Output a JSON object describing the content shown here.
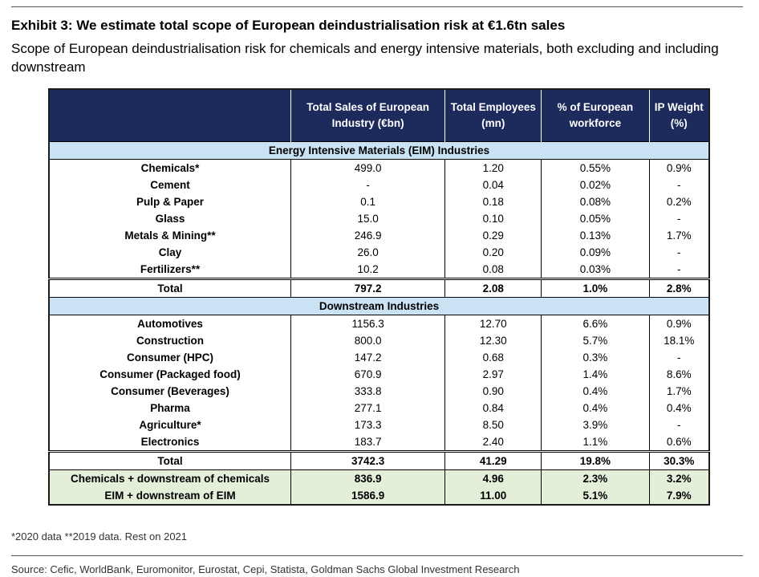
{
  "header": {
    "title": "Exhibit 3: We estimate total scope of European deindustrialisation risk at €1.6tn sales",
    "subtitle": "Scope of European deindustrialisation risk for chemicals and energy intensive materials, both excluding and including downstream"
  },
  "table": {
    "columns": [
      "Total Sales of European Industry (€bn)",
      "Total Employees (mn)",
      "% of European workforce",
      "IP Weight (%)"
    ],
    "sections": [
      {
        "title": "Energy Intensive Materials (EIM) Industries",
        "rows": [
          [
            "Chemicals*",
            "499.0",
            "1.20",
            "0.55%",
            "0.9%"
          ],
          [
            "Cement",
            "-",
            "0.04",
            "0.02%",
            "-"
          ],
          [
            "Pulp & Paper",
            "0.1",
            "0.18",
            "0.08%",
            "0.2%"
          ],
          [
            "Glass",
            "15.0",
            "0.10",
            "0.05%",
            "-"
          ],
          [
            "Metals & Mining**",
            "246.9",
            "0.29",
            "0.13%",
            "1.7%"
          ],
          [
            "Clay",
            "26.0",
            "0.20",
            "0.09%",
            "-"
          ],
          [
            "Fertilizers**",
            "10.2",
            "0.08",
            "0.03%",
            "-"
          ]
        ],
        "total": [
          "Total",
          "797.2",
          "2.08",
          "1.0%",
          "2.8%"
        ]
      },
      {
        "title": "Downstream Industries",
        "rows": [
          [
            "Automotives",
            "1156.3",
            "12.70",
            "6.6%",
            "0.9%"
          ],
          [
            "Construction",
            "800.0",
            "12.30",
            "5.7%",
            "18.1%"
          ],
          [
            "Consumer (HPC)",
            "147.2",
            "0.68",
            "0.3%",
            "-"
          ],
          [
            "Consumer (Packaged food)",
            "670.9",
            "2.97",
            "1.4%",
            "8.6%"
          ],
          [
            "Consumer (Beverages)",
            "333.8",
            "0.90",
            "0.4%",
            "1.7%"
          ],
          [
            "Pharma",
            "277.1",
            "0.84",
            "0.4%",
            "0.4%"
          ],
          [
            "Agriculture*",
            "173.3",
            "8.50",
            "3.9%",
            "-"
          ],
          [
            "Electronics",
            "183.7",
            "2.40",
            "1.1%",
            "0.6%"
          ]
        ],
        "total": [
          "Total",
          "3742.3",
          "41.29",
          "19.8%",
          "30.3%"
        ]
      }
    ],
    "summary": [
      [
        "Chemicals + downstream of chemicals",
        "836.9",
        "4.96",
        "2.3%",
        "3.2%"
      ],
      [
        "EIM + downstream of EIM",
        "1586.9",
        "11.00",
        "5.1%",
        "7.9%"
      ]
    ]
  },
  "footnote": "*2020 data **2019 data. Rest on 2021",
  "source": "Source: Cefic, WorldBank, Euromonitor, Eurostat, Cepi, Statista, Goldman Sachs Global Investment Research"
}
